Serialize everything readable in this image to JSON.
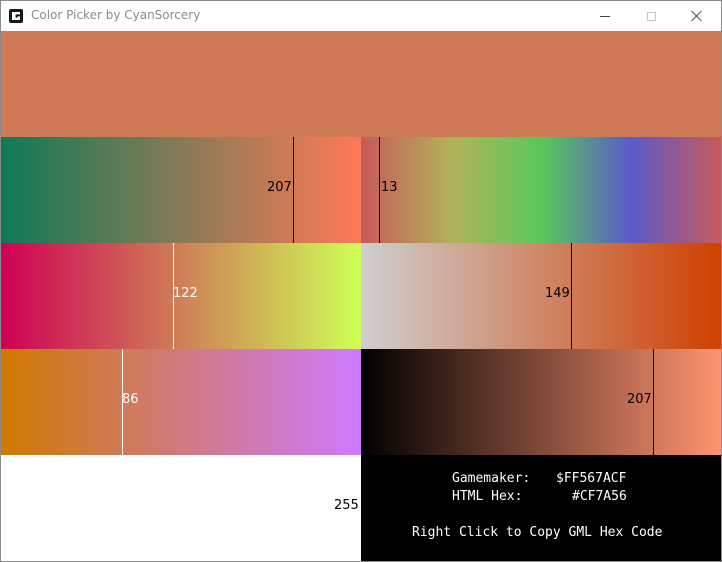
{
  "window": {
    "title": "Color Picker by CyanSorcery"
  },
  "preview": {
    "color": "#CF7A56"
  },
  "sliders": [
    {
      "id": "red",
      "value": 207,
      "max": 255,
      "gradient": [
        "#0F7A56",
        "#FF7A56"
      ],
      "marker": "dark"
    },
    {
      "id": "hue",
      "value": 13,
      "max": 255,
      "gradient": [
        "#C85A5A",
        "#B2B25A",
        "#5AC85A",
        "#5A5AC8",
        "#C85A5A"
      ],
      "marker": "dark"
    },
    {
      "id": "green",
      "value": 122,
      "max": 255,
      "gradient": [
        "#CF0056",
        "#CFFF56"
      ],
      "marker": "light"
    },
    {
      "id": "saturation",
      "value": 149,
      "max": 255,
      "gradient": [
        "#CFCFCF",
        "#CF4000"
      ],
      "marker": "dark"
    },
    {
      "id": "blue",
      "value": 86,
      "max": 255,
      "gradient": [
        "#CF7A00",
        "#CF7AFF"
      ],
      "marker": "light"
    },
    {
      "id": "value",
      "value": 207,
      "max": 255,
      "gradient": [
        "#000000",
        "#FF9470"
      ],
      "marker": "dark"
    },
    {
      "id": "alpha",
      "value": 255,
      "max": 255,
      "gradient": [
        "#FFFFFF",
        "#FFFFFF"
      ],
      "marker": "none"
    }
  ],
  "info": {
    "gamemaker_label": "Gamemaker:",
    "gamemaker_value": "$FF567ACF",
    "html_label": "HTML Hex:",
    "html_value": "#CF7A56",
    "hint": "Right Click to Copy GML Hex Code"
  }
}
